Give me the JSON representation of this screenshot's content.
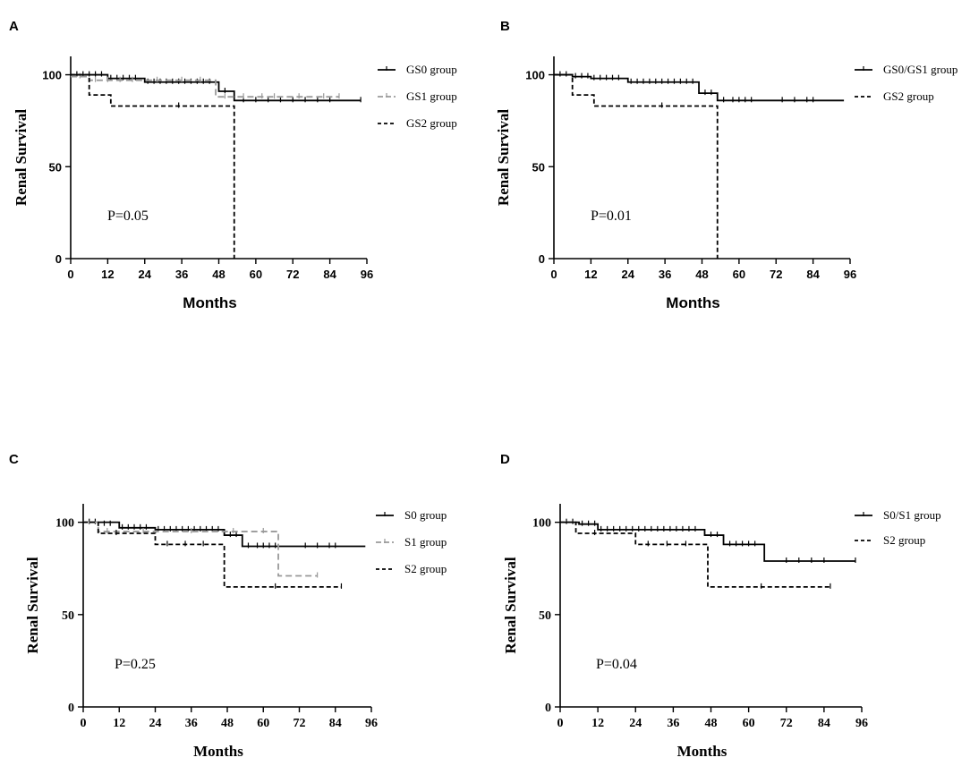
{
  "figure": {
    "panels": [
      "A",
      "B",
      "C",
      "D"
    ]
  },
  "colors": {
    "black": "#000000",
    "gray": "#999999"
  },
  "chart_data": [
    {
      "panel": "A",
      "type": "line",
      "subtype": "kaplan-meier",
      "title": "",
      "xlabel": "Months",
      "ylabel": "Renal Survival",
      "xlim": [
        0,
        96
      ],
      "ylim": [
        0,
        110
      ],
      "xticks": [
        "0",
        "12",
        "24",
        "36",
        "48",
        "60",
        "72",
        "84",
        "96"
      ],
      "yticks": [
        "0",
        "50",
        "100"
      ],
      "annotation": "P=0.05",
      "series": [
        {
          "name": "GS0 group",
          "color": "#000000",
          "dash": "solid",
          "steps": [
            [
              0,
              100
            ],
            [
              12,
              98
            ],
            [
              24,
              96
            ],
            [
              48,
              91
            ],
            [
              53,
              86
            ],
            [
              94,
              86
            ]
          ],
          "censors": [
            [
              2,
              100
            ],
            [
              4,
              100
            ],
            [
              6,
              100
            ],
            [
              8,
              100
            ],
            [
              10,
              100
            ],
            [
              13,
              98
            ],
            [
              15,
              98
            ],
            [
              17,
              98
            ],
            [
              19,
              98
            ],
            [
              21,
              98
            ],
            [
              25,
              96
            ],
            [
              27,
              96
            ],
            [
              29,
              96
            ],
            [
              31,
              96
            ],
            [
              33,
              96
            ],
            [
              35,
              96
            ],
            [
              37,
              96
            ],
            [
              39,
              96
            ],
            [
              41,
              96
            ],
            [
              43,
              96
            ],
            [
              45,
              96
            ],
            [
              50,
              91
            ],
            [
              56,
              86
            ],
            [
              60,
              86
            ],
            [
              64,
              86
            ],
            [
              68,
              86
            ],
            [
              72,
              86
            ],
            [
              76,
              86
            ],
            [
              80,
              86
            ],
            [
              84,
              86
            ],
            [
              94,
              86
            ]
          ]
        },
        {
          "name": "GS1 group",
          "color": "#999999",
          "dash": "long",
          "steps": [
            [
              0,
              99
            ],
            [
              6,
              97
            ],
            [
              47,
              88
            ],
            [
              87,
              88
            ]
          ],
          "censors": [
            [
              3,
              99
            ],
            [
              8,
              97
            ],
            [
              12,
              97
            ],
            [
              16,
              97
            ],
            [
              20,
              97
            ],
            [
              28,
              97
            ],
            [
              36,
              97
            ],
            [
              42,
              97
            ],
            [
              50,
              88
            ],
            [
              56,
              88
            ],
            [
              62,
              88
            ],
            [
              66,
              88
            ],
            [
              74,
              88
            ],
            [
              82,
              88
            ],
            [
              87,
              88
            ]
          ]
        },
        {
          "name": "GS2 group",
          "color": "#000000",
          "dash": "short",
          "steps": [
            [
              0,
              100
            ],
            [
              6,
              89
            ],
            [
              13,
              83
            ],
            [
              53,
              0
            ]
          ],
          "censors": [
            [
              35,
              83
            ]
          ]
        }
      ]
    },
    {
      "panel": "B",
      "type": "line",
      "subtype": "kaplan-meier",
      "title": "",
      "xlabel": "Months",
      "ylabel": "Renal Survival",
      "xlim": [
        0,
        96
      ],
      "ylim": [
        0,
        110
      ],
      "xticks": [
        "0",
        "12",
        "24",
        "36",
        "48",
        "60",
        "72",
        "84",
        "96"
      ],
      "yticks": [
        "0",
        "50",
        "100"
      ],
      "annotation": "P=0.01",
      "series": [
        {
          "name": "GS0/GS1 group",
          "color": "#000000",
          "dash": "solid",
          "steps": [
            [
              0,
              100
            ],
            [
              6,
              99
            ],
            [
              12,
              98
            ],
            [
              24,
              96
            ],
            [
              47,
              90
            ],
            [
              53,
              86
            ],
            [
              94,
              86
            ]
          ],
          "censors": [
            [
              2,
              100
            ],
            [
              4,
              100
            ],
            [
              7,
              99
            ],
            [
              9,
              99
            ],
            [
              11,
              99
            ],
            [
              13,
              98
            ],
            [
              15,
              98
            ],
            [
              17,
              98
            ],
            [
              19,
              98
            ],
            [
              21,
              98
            ],
            [
              25,
              96
            ],
            [
              27,
              96
            ],
            [
              29,
              96
            ],
            [
              31,
              96
            ],
            [
              33,
              96
            ],
            [
              35,
              96
            ],
            [
              37,
              96
            ],
            [
              39,
              96
            ],
            [
              41,
              96
            ],
            [
              43,
              96
            ],
            [
              45,
              96
            ],
            [
              49,
              90
            ],
            [
              51,
              90
            ],
            [
              55,
              86
            ],
            [
              58,
              86
            ],
            [
              60,
              86
            ],
            [
              62,
              86
            ],
            [
              64,
              86
            ],
            [
              74,
              86
            ],
            [
              78,
              86
            ],
            [
              82,
              86
            ],
            [
              84,
              86
            ]
          ]
        },
        {
          "name": "GS2 group",
          "color": "#000000",
          "dash": "short",
          "steps": [
            [
              0,
              100
            ],
            [
              6,
              89
            ],
            [
              13,
              83
            ],
            [
              53,
              0
            ]
          ],
          "censors": [
            [
              35,
              83
            ]
          ]
        }
      ]
    },
    {
      "panel": "C",
      "type": "line",
      "subtype": "kaplan-meier",
      "title": "",
      "xlabel": "Months",
      "ylabel": "Renal Survival",
      "xlim": [
        0,
        96
      ],
      "ylim": [
        0,
        110
      ],
      "xticks": [
        "0",
        "12",
        "24",
        "36",
        "48",
        "60",
        "72",
        "84",
        "96"
      ],
      "yticks": [
        "0",
        "50",
        "100"
      ],
      "annotation": "P=0.25",
      "series": [
        {
          "name": "S0 group",
          "color": "#000000",
          "dash": "solid",
          "steps": [
            [
              0,
              100
            ],
            [
              12,
              97
            ],
            [
              24,
              96
            ],
            [
              47,
              93
            ],
            [
              53,
              87
            ],
            [
              94,
              87
            ]
          ],
          "censors": [
            [
              2,
              100
            ],
            [
              4,
              100
            ],
            [
              7,
              99
            ],
            [
              9,
              99
            ],
            [
              13,
              97
            ],
            [
              15,
              97
            ],
            [
              17,
              97
            ],
            [
              19,
              97
            ],
            [
              21,
              97
            ],
            [
              25,
              96
            ],
            [
              27,
              96
            ],
            [
              29,
              96
            ],
            [
              31,
              96
            ],
            [
              33,
              96
            ],
            [
              35,
              96
            ],
            [
              37,
              96
            ],
            [
              39,
              96
            ],
            [
              41,
              96
            ],
            [
              43,
              96
            ],
            [
              45,
              96
            ],
            [
              49,
              93
            ],
            [
              51,
              93
            ],
            [
              55,
              87
            ],
            [
              58,
              87
            ],
            [
              60,
              87
            ],
            [
              62,
              87
            ],
            [
              64,
              87
            ],
            [
              74,
              87
            ],
            [
              78,
              87
            ],
            [
              82,
              87
            ],
            [
              84,
              87
            ]
          ]
        },
        {
          "name": "S1 group",
          "color": "#999999",
          "dash": "long",
          "steps": [
            [
              0,
              100
            ],
            [
              5,
              95
            ],
            [
              65,
              71
            ],
            [
              78,
              71
            ]
          ],
          "censors": [
            [
              8,
              95
            ],
            [
              20,
              95
            ],
            [
              36,
              95
            ],
            [
              50,
              95
            ],
            [
              60,
              95
            ],
            [
              78,
              71
            ]
          ]
        },
        {
          "name": "S2 group",
          "color": "#000000",
          "dash": "short",
          "steps": [
            [
              0,
              100
            ],
            [
              5,
              94
            ],
            [
              24,
              88
            ],
            [
              47,
              65
            ],
            [
              86,
              65
            ]
          ],
          "censors": [
            [
              11,
              94
            ],
            [
              28,
              88
            ],
            [
              34,
              88
            ],
            [
              40,
              88
            ],
            [
              64,
              65
            ],
            [
              86,
              65
            ]
          ]
        }
      ]
    },
    {
      "panel": "D",
      "type": "line",
      "subtype": "kaplan-meier",
      "title": "",
      "xlabel": "Months",
      "ylabel": "Renal Survival",
      "xlim": [
        0,
        96
      ],
      "ylim": [
        0,
        110
      ],
      "xticks": [
        "0",
        "12",
        "24",
        "36",
        "48",
        "60",
        "72",
        "84",
        "96"
      ],
      "yticks": [
        "0",
        "50",
        "100"
      ],
      "annotation": "P=0.04",
      "series": [
        {
          "name": "S0/S1 group",
          "color": "#000000",
          "dash": "solid",
          "steps": [
            [
              0,
              100
            ],
            [
              6,
              99
            ],
            [
              12,
              96
            ],
            [
              46,
              93
            ],
            [
              52,
              88
            ],
            [
              65,
              79
            ],
            [
              94,
              79
            ]
          ],
          "censors": [
            [
              2,
              100
            ],
            [
              4,
              100
            ],
            [
              7,
              99
            ],
            [
              9,
              99
            ],
            [
              11,
              99
            ],
            [
              13,
              96
            ],
            [
              15,
              96
            ],
            [
              17,
              96
            ],
            [
              19,
              96
            ],
            [
              21,
              96
            ],
            [
              23,
              96
            ],
            [
              25,
              96
            ],
            [
              27,
              96
            ],
            [
              29,
              96
            ],
            [
              31,
              96
            ],
            [
              33,
              96
            ],
            [
              35,
              96
            ],
            [
              37,
              96
            ],
            [
              39,
              96
            ],
            [
              41,
              96
            ],
            [
              43,
              96
            ],
            [
              48,
              93
            ],
            [
              50,
              93
            ],
            [
              54,
              88
            ],
            [
              56,
              88
            ],
            [
              58,
              88
            ],
            [
              60,
              88
            ],
            [
              62,
              88
            ],
            [
              72,
              79
            ],
            [
              76,
              79
            ],
            [
              80,
              79
            ],
            [
              84,
              79
            ],
            [
              94,
              79
            ]
          ]
        },
        {
          "name": "S2 group",
          "color": "#000000",
          "dash": "short",
          "steps": [
            [
              0,
              100
            ],
            [
              5,
              94
            ],
            [
              24,
              88
            ],
            [
              47,
              65
            ],
            [
              86,
              65
            ]
          ],
          "censors": [
            [
              11,
              94
            ],
            [
              28,
              88
            ],
            [
              34,
              88
            ],
            [
              40,
              88
            ],
            [
              64,
              65
            ],
            [
              86,
              65
            ]
          ]
        }
      ]
    }
  ]
}
